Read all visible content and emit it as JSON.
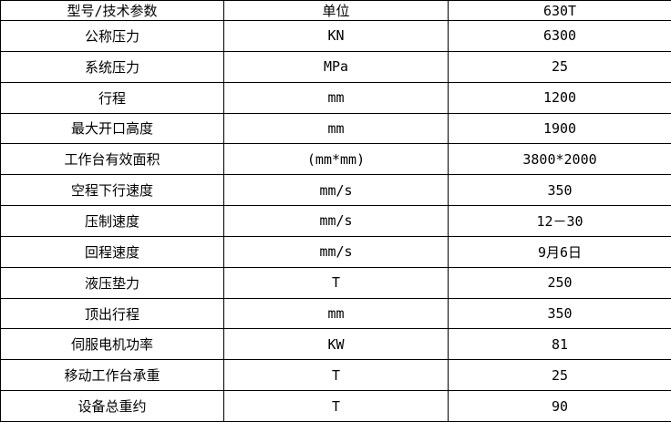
{
  "colors": {
    "border": "#000000",
    "background": "#ffffff",
    "text": "#000000"
  },
  "table": {
    "columns": {
      "param": "型号/技术参数",
      "unit": "单位",
      "model": "630T"
    },
    "rows": [
      {
        "param": "公称压力",
        "unit": "KN",
        "value": "6300"
      },
      {
        "param": "系统压力",
        "unit": "MPa",
        "value": "25"
      },
      {
        "param": "行程",
        "unit": "mm",
        "value": "1200"
      },
      {
        "param": "最大开口高度",
        "unit": "mm",
        "value": "1900"
      },
      {
        "param": "工作台有效面积",
        "unit": "(mm*mm)",
        "value": "3800*2000"
      },
      {
        "param": "空程下行速度",
        "unit": "mm/s",
        "value": "350"
      },
      {
        "param": "压制速度",
        "unit": "mm/s",
        "value": "12－30"
      },
      {
        "param": "回程速度",
        "unit": "mm/s",
        "value": "9月6日"
      },
      {
        "param": "液压垫力",
        "unit": "T",
        "value": "250"
      },
      {
        "param": "顶出行程",
        "unit": "mm",
        "value": "350"
      },
      {
        "param": "伺服电机功率",
        "unit": "KW",
        "value": "81"
      },
      {
        "param": "移动工作台承重",
        "unit": "T",
        "value": "25"
      },
      {
        "param": "设备总重约",
        "unit": "T",
        "value": "90"
      }
    ]
  }
}
